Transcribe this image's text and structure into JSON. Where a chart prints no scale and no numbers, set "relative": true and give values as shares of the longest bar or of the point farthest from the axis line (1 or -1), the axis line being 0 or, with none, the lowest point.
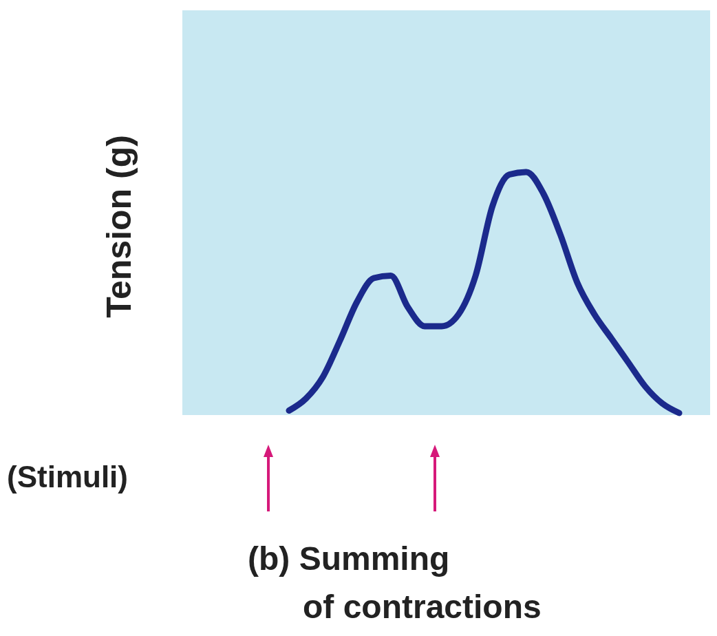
{
  "chart_data": {
    "type": "line",
    "relative": true,
    "title": "(b) Summing of contractions",
    "ylabel": "Tension (g)",
    "annotations": [
      "(Stimuli)"
    ],
    "categories": [
      null,
      null,
      null,
      null,
      null,
      null,
      null,
      null,
      null,
      null,
      null,
      null,
      null,
      null,
      null,
      null,
      null,
      null,
      null,
      null,
      null,
      null,
      null,
      null
    ],
    "series": [
      {
        "color": "#1b2a8c",
        "values": [
          0.01,
          0.06,
          0.15,
          0.3,
          0.46,
          0.56,
          0.57,
          0.44,
          0.36,
          0.36,
          0.41,
          0.57,
          0.86,
          0.99,
          1,
          0.91,
          0.74,
          0.54,
          0.41,
          0.31,
          0.21,
          0.11,
          0.04,
          0
        ]
      }
    ],
    "line_style": "solid"
  }
}
